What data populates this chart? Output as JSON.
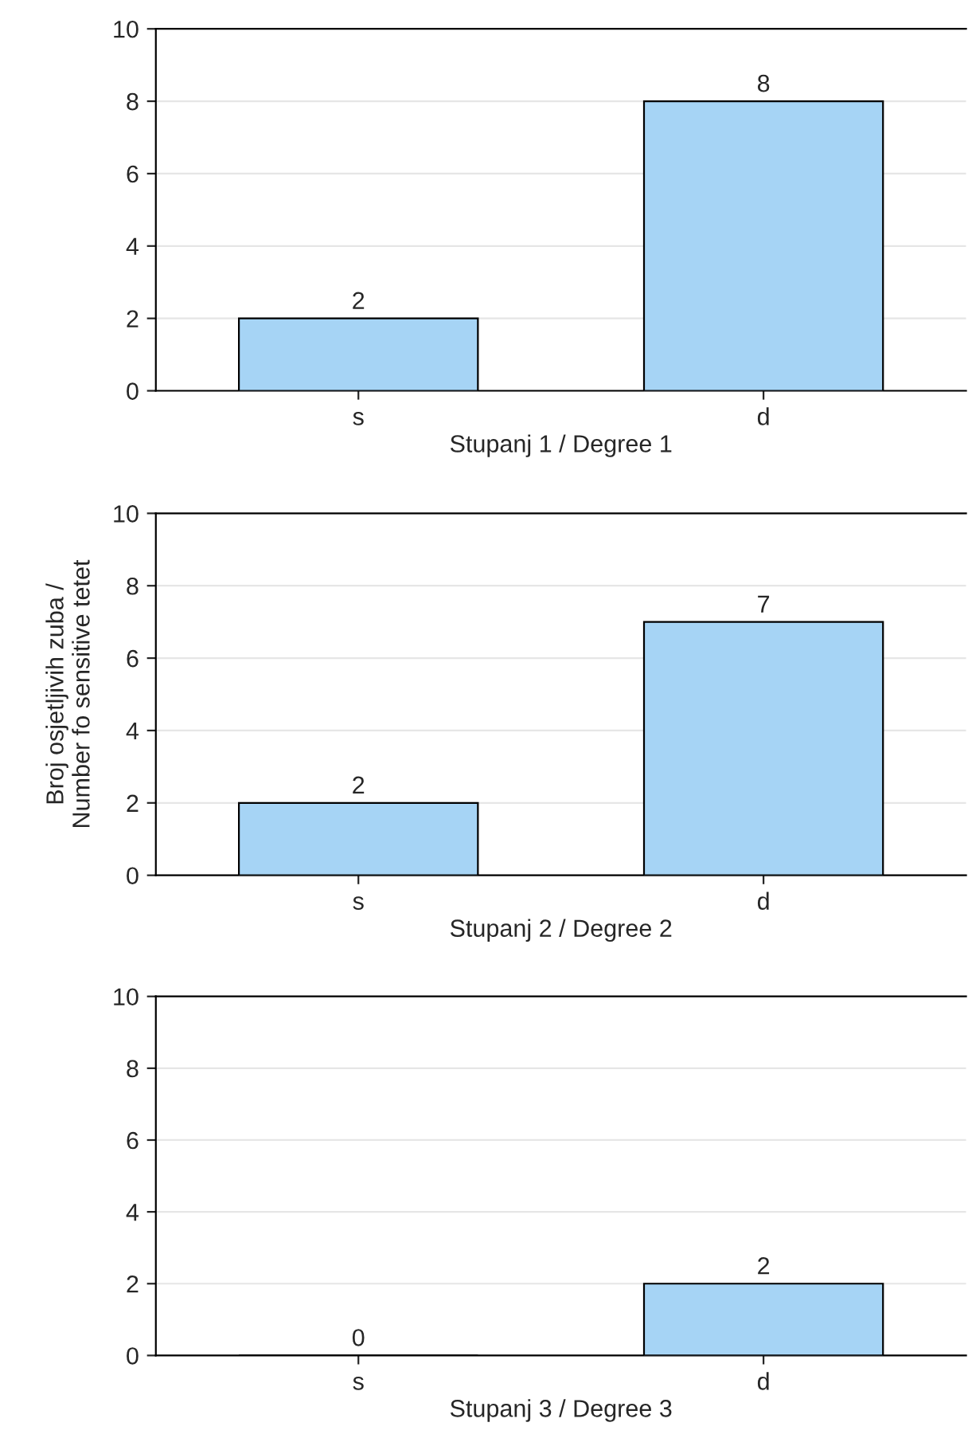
{
  "chart_data": [
    {
      "type": "bar",
      "xlabel": "Stupanj 1 / Degree 1",
      "categories": [
        "s",
        "d"
      ],
      "values": [
        2,
        8
      ],
      "color": "#a6d4f5",
      "ylim": [
        0,
        10
      ],
      "yticks": [
        0,
        2,
        4,
        6,
        8,
        10
      ],
      "grid": "y",
      "data_labels": true,
      "legend": false
    },
    {
      "type": "bar",
      "xlabel": "Stupanj 2 / Degree 2",
      "ylabel": "Broj osjetljivih zuba /\nNumber fo sensitive tetet",
      "categories": [
        "s",
        "d"
      ],
      "values": [
        2,
        7
      ],
      "color": "#a6d4f5",
      "ylim": [
        0,
        10
      ],
      "yticks": [
        0,
        2,
        4,
        6,
        8,
        10
      ],
      "grid": "y",
      "data_labels": true,
      "legend": false
    },
    {
      "type": "bar",
      "xlabel": "Stupanj 3 / Degree 3",
      "categories": [
        "s",
        "d"
      ],
      "values": [
        0,
        2
      ],
      "color": "#a6d4f5",
      "ylim": [
        0,
        10
      ],
      "yticks": [
        0,
        2,
        4,
        6,
        8,
        10
      ],
      "grid": "y",
      "data_labels": true,
      "legend": false
    }
  ]
}
